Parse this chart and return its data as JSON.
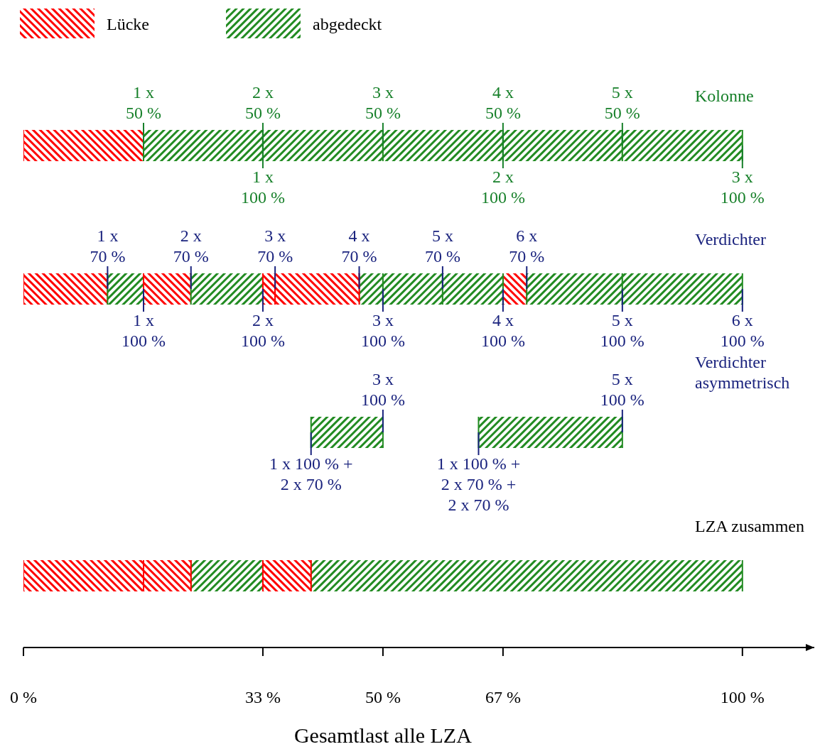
{
  "chart_data": {
    "type": "bar",
    "orientation": "horizontal",
    "legend": "top left",
    "xlabel": "Gesamtlast alle LZA",
    "categories": [
      "Kolonne",
      "Verdichter",
      "Verdichter\nasymmetrisch",
      "LZA zusammen"
    ],
    "xlim": [
      0,
      110
    ],
    "xticks": [
      {
        "value": 0,
        "label": "0 %"
      },
      {
        "value": 33.3,
        "label": "33 %"
      },
      {
        "value": 50,
        "label": "50 %"
      },
      {
        "value": 66.7,
        "label": "67 %"
      },
      {
        "value": 100,
        "label": "100 %"
      }
    ],
    "series": [
      {
        "name": "Lücke",
        "color": "#ff0000",
        "base": [
          0,
          0,
          null,
          0
        ],
        "values": [
          16.7,
          11.7,
          null,
          16.7
        ]
      },
      {
        "name": "abgedeckt",
        "color": "#228b22",
        "base": [
          16.7,
          11.7,
          40,
          23.3
        ],
        "values": [
          16.6,
          5,
          10,
          10
        ]
      },
      {
        "color": "#ff0000",
        "base": [
          null,
          16.7,
          null,
          16.7
        ],
        "values": [
          null,
          6.6,
          null,
          6.6
        ]
      },
      {
        "color": "#228b22",
        "base": [
          33.3,
          23.3,
          63.3,
          40
        ],
        "values": [
          16.7,
          10,
          20,
          60
        ]
      },
      {
        "color": "#ff0000",
        "base": [
          null,
          33.3,
          null,
          33.3
        ],
        "values": [
          null,
          1.7,
          null,
          6.7
        ]
      },
      {
        "color": "#228b22",
        "base": [
          50,
          46.7,
          null,
          null
        ],
        "values": [
          16.7,
          3.3,
          null,
          null
        ]
      },
      {
        "color": "#ff0000",
        "base": [
          null,
          35,
          null,
          null
        ],
        "values": [
          null,
          11.7,
          null,
          null
        ]
      },
      {
        "color": "#228b22",
        "base": [
          66.7,
          50,
          null,
          null
        ],
        "values": [
          16.6,
          8.3,
          null,
          null
        ]
      },
      {
        "color": "#ff0000",
        "base": [
          null,
          66.7,
          null,
          null
        ],
        "values": [
          null,
          3.3,
          null,
          null
        ]
      },
      {
        "color": "#228b22",
        "base": [
          83.3,
          58.3,
          null,
          null
        ],
        "values": [
          16.7,
          8.4,
          null,
          null
        ]
      },
      {
        "color": "#228b22",
        "base": [
          null,
          70,
          null,
          null
        ],
        "values": [
          null,
          13.3,
          null,
          null
        ]
      },
      {
        "color": "#228b22",
        "base": [
          null,
          83.3,
          null,
          null
        ],
        "values": [
          null,
          16.7,
          null,
          null
        ]
      }
    ],
    "annotations": [
      {
        "text": "1 x\n50 %",
        "x": 16.7,
        "y": "Kolonne"
      },
      {
        "text": "2 x\n50 %",
        "x": 33.3,
        "y": "Kolonne"
      },
      {
        "text": "3 x\n50 %",
        "x": 50,
        "y": "Kolonne"
      },
      {
        "text": "4 x\n50 %",
        "x": 66.7,
        "y": "Kolonne"
      },
      {
        "text": "5 x\n50 %",
        "x": 83.3,
        "y": "Kolonne"
      },
      {
        "text": "1 x\n100 %",
        "x": 33.3,
        "y": "Kolonne"
      },
      {
        "text": "2 x\n100 %",
        "x": 66.7,
        "y": "Kolonne"
      },
      {
        "text": "3 x\n100 %",
        "x": 100,
        "y": "Kolonne"
      },
      {
        "text": "1 x\n70 %",
        "x": 11.7,
        "y": "Verdichter"
      },
      {
        "text": "2 x\n70 %",
        "x": 23.3,
        "y": "Verdichter"
      },
      {
        "text": "3 x\n70 %",
        "x": 35,
        "y": "Verdichter"
      },
      {
        "text": "4 x\n70 %",
        "x": 46.7,
        "y": "Verdichter"
      },
      {
        "text": "5 x\n70 %",
        "x": 58.3,
        "y": "Verdichter"
      },
      {
        "text": "6 x\n70 %",
        "x": 70,
        "y": "Verdichter"
      },
      {
        "text": "1 x\n100 %",
        "x": 16.7,
        "y": "Verdichter"
      },
      {
        "text": "2 x\n100 %",
        "x": 33.3,
        "y": "Verdichter"
      },
      {
        "text": "3 x\n100 %",
        "x": 50,
        "y": "Verdichter"
      },
      {
        "text": "4 x\n100 %",
        "x": 66.7,
        "y": "Verdichter"
      },
      {
        "text": "5 x\n100 %",
        "x": 83.3,
        "y": "Verdichter"
      },
      {
        "text": "6 x\n100 %",
        "x": 100,
        "y": "Verdichter"
      },
      {
        "text": "3 x\n100 %",
        "x": 50,
        "y": "Verdichter\nasymmetrisch"
      },
      {
        "text": "5 x\n100 %",
        "x": 83.3,
        "y": "Verdichter\nasymmetrisch"
      },
      {
        "text": "1 x 100 % +\n2 x 70 %",
        "x": 40,
        "y": "Verdichter\nasymmetrisch"
      },
      {
        "text": "1 x 100 % +\n2 x 70 % +\n2 x 70 %",
        "x": 63.3,
        "y": "Verdichter\nasymmetrisch"
      }
    ]
  }
}
